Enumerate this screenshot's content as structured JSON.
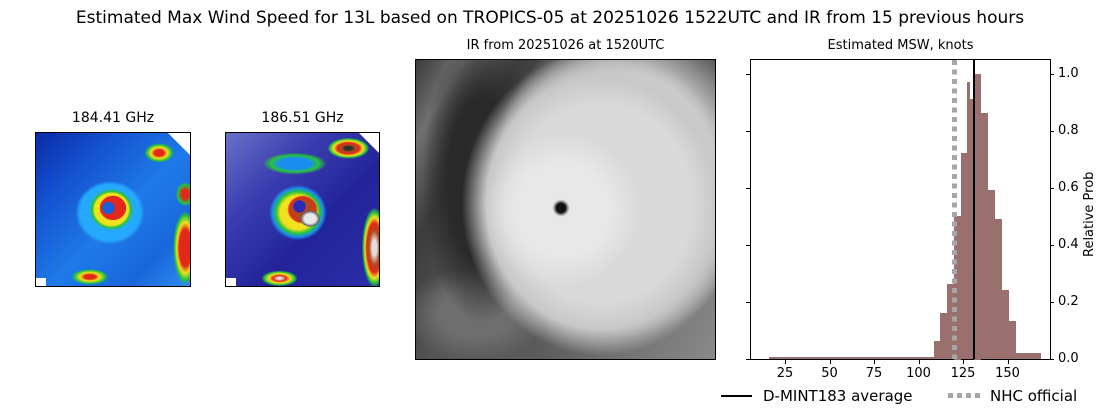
{
  "figure": {
    "suptitle": "Estimated Max Wind Speed for 13L based on TROPICS-05 at 20251026 1522UTC and IR from 15 previous hours"
  },
  "panels": {
    "mw1": {
      "title": "184.41 GHz",
      "icon": "microwave-image"
    },
    "mw2": {
      "title": "186.51 GHz",
      "icon": "microwave-image"
    },
    "ir": {
      "title": "IR from 20251026 at 1520UTC",
      "icon": "infrared-image"
    }
  },
  "chart_data": {
    "type": "bar",
    "title": "Estimated MSW, knots",
    "xlabel": "",
    "ylabel": "Relative Prob",
    "xlim": [
      0,
      175
    ],
    "ylim": [
      0,
      1.05
    ],
    "x_ticks": [
      25,
      50,
      75,
      100,
      125,
      150
    ],
    "y_ticks": [
      "0.0",
      "0.2",
      "0.4",
      "0.6",
      "0.8",
      "1.0"
    ],
    "y_axis_position": "right",
    "grid": false,
    "bar_color": "#9a706e",
    "bins": [
      {
        "x0": 16,
        "x1": 108.5,
        "value": 0.005
      },
      {
        "x0": 108.5,
        "x1": 112,
        "value": 0.06
      },
      {
        "x0": 112,
        "x1": 116,
        "value": 0.16
      },
      {
        "x0": 116,
        "x1": 120,
        "value": 0.26
      },
      {
        "x0": 120,
        "x1": 124,
        "value": 0.5
      },
      {
        "x0": 124,
        "x1": 127,
        "value": 0.72
      },
      {
        "x0": 127,
        "x1": 129,
        "value": 0.97
      },
      {
        "x0": 129,
        "x1": 131,
        "value": 0.91
      },
      {
        "x0": 131,
        "x1": 135,
        "value": 1.0
      },
      {
        "x0": 135,
        "x1": 139,
        "value": 0.86
      },
      {
        "x0": 139,
        "x1": 143,
        "value": 0.59
      },
      {
        "x0": 143,
        "x1": 147,
        "value": 0.49
      },
      {
        "x0": 147,
        "x1": 151,
        "value": 0.24
      },
      {
        "x0": 151,
        "x1": 155,
        "value": 0.13
      },
      {
        "x0": 155,
        "x1": 169,
        "value": 0.02
      }
    ],
    "lines": [
      {
        "name": "D-MINT183 average",
        "x": 131,
        "color": "#000000",
        "style": "solid"
      },
      {
        "name": "NHC official",
        "x": 120,
        "color": "#a6a6a6",
        "style": "dotted"
      }
    ],
    "legend": {
      "position": "bottom",
      "entries": [
        "D-MINT183 average",
        "NHC official"
      ]
    }
  }
}
